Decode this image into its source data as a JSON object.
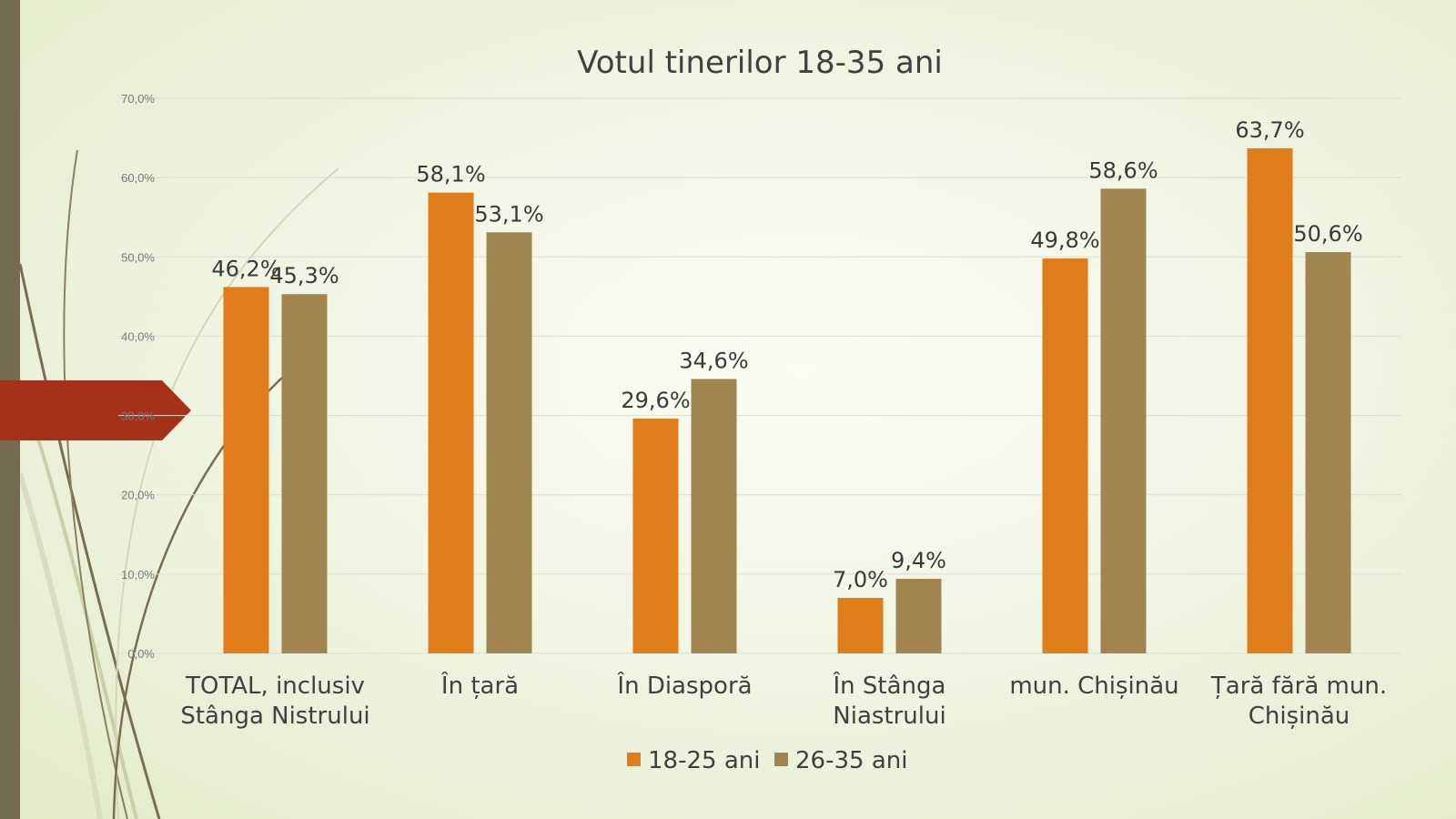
{
  "colors": {
    "sidebar": "#746b52",
    "arrow": "#a6311a",
    "series1": "#de7d1a",
    "series2": "#a08550",
    "grid": "#dcdfd0",
    "decor_dark": "#7a6e50",
    "decor_light": "#c9cfa8"
  },
  "chart_data": {
    "type": "bar",
    "title": "Votul tinerilor 18-35 ani",
    "xlabel": "",
    "ylabel": "",
    "ylim": [
      0,
      70
    ],
    "y_ticks": [
      "0,0%",
      "10,0%",
      "20,0%",
      "30,0%",
      "40,0%",
      "50,0%",
      "60,0%",
      "70,0%"
    ],
    "grid": true,
    "legend_position": "bottom",
    "categories": [
      [
        "TOTAL, inclusiv",
        "Stânga Nistrului"
      ],
      [
        "În țară"
      ],
      [
        "În Diasporă"
      ],
      [
        "În Stânga",
        "Niastrului"
      ],
      [
        "mun. Chișinău"
      ],
      [
        "Țară fără mun.",
        "Chișinău"
      ]
    ],
    "series": [
      {
        "name": "18-25 ani",
        "color": "#de7d1a",
        "values": [
          46.2,
          58.1,
          29.6,
          7.0,
          49.8,
          63.7
        ],
        "labels": [
          "46,2%",
          "58,1%",
          "29,6%",
          "7,0%",
          "49,8%",
          "63,7%"
        ]
      },
      {
        "name": "26-35 ani",
        "color": "#a08550",
        "values": [
          45.3,
          53.1,
          34.6,
          9.4,
          58.6,
          50.6
        ],
        "labels": [
          "45,3%",
          "53,1%",
          "34,6%",
          "9,4%",
          "58,6%",
          "50,6%"
        ]
      }
    ]
  }
}
